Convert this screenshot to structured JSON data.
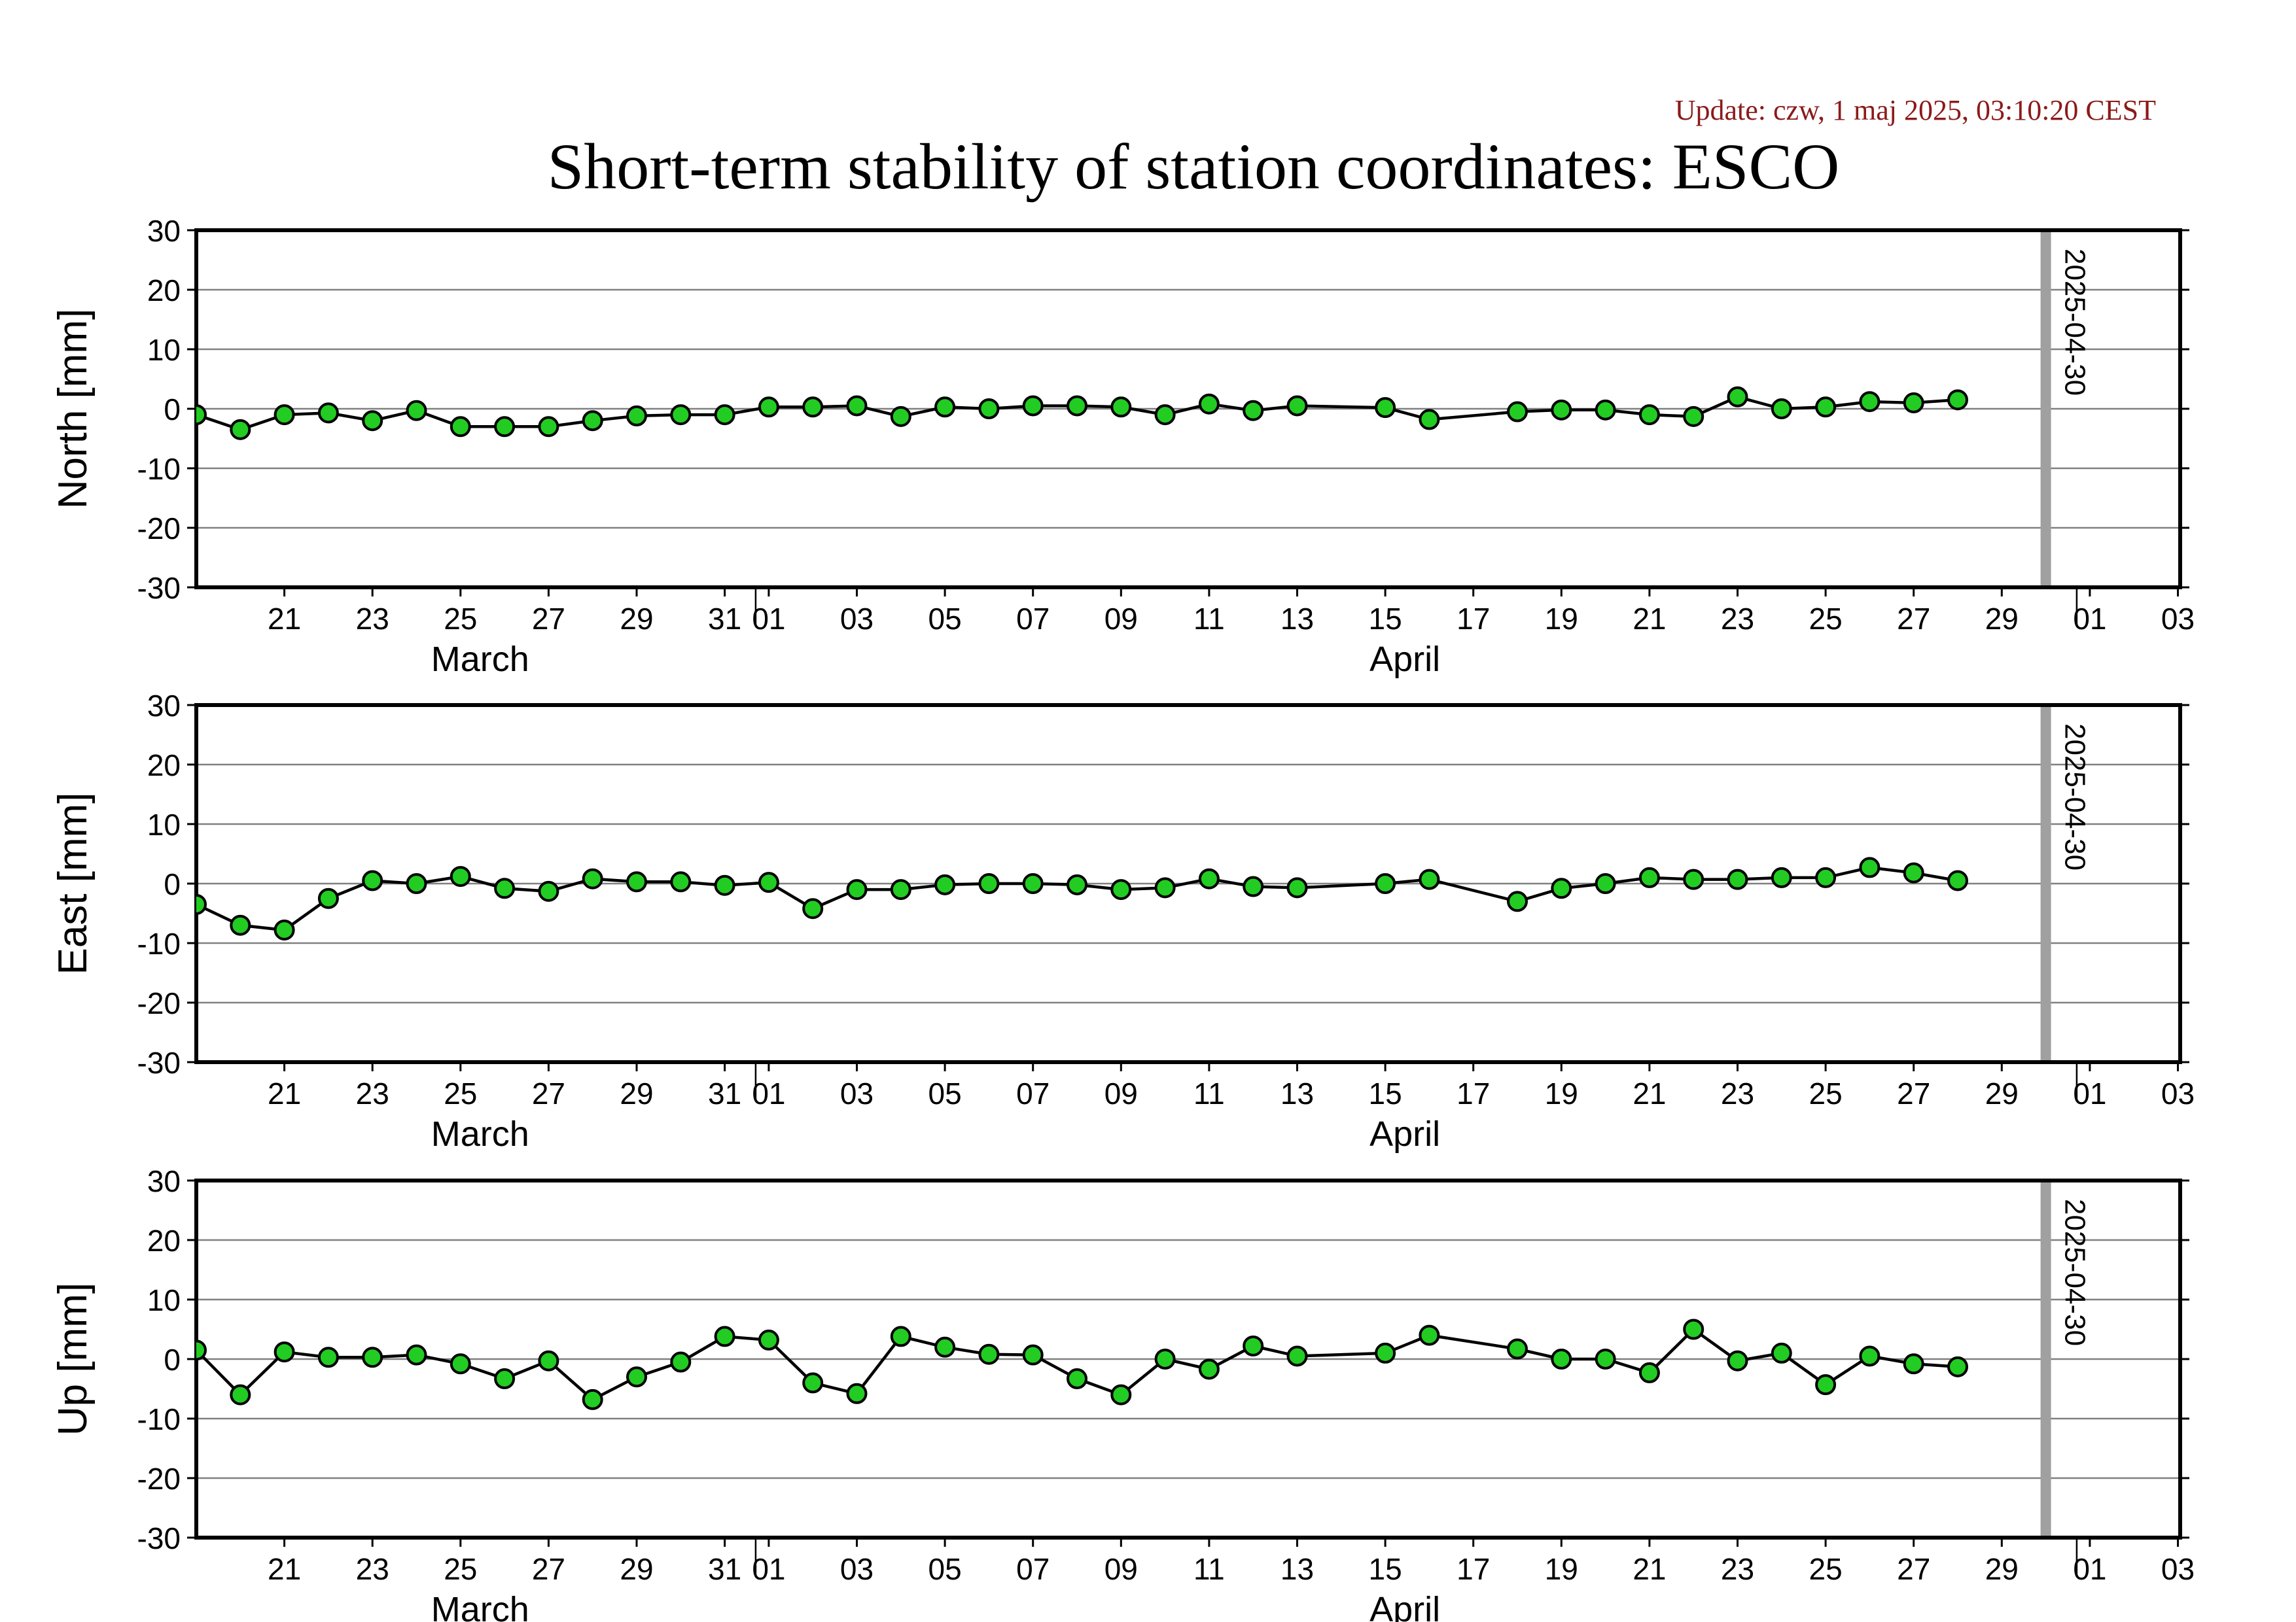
{
  "update_text": "Update: czw, 1 maj 2025, 03:10:20 CEST",
  "title": "Short-term stability of station coordinates: ESCO",
  "colors": {
    "marker_fill": "#22cc22",
    "marker_edge": "#000000",
    "line": "#000000",
    "grid": "#808080",
    "marker_line": "#a0a0a0",
    "update_text": "#8b1a1a"
  },
  "chart_data": [
    {
      "type": "line",
      "ylabel": "North [mm]",
      "ylim": [
        -30,
        30
      ],
      "yticks": [
        -30,
        -20,
        -10,
        0,
        10,
        20,
        30
      ],
      "xlim": [
        "2025-03-19",
        "2025-05-04"
      ],
      "grid": true,
      "x": [
        "2025-03-19",
        "2025-03-20",
        "2025-03-21",
        "2025-03-22",
        "2025-03-23",
        "2025-03-24",
        "2025-03-25",
        "2025-03-26",
        "2025-03-27",
        "2025-03-28",
        "2025-03-29",
        "2025-03-30",
        "2025-03-31",
        "2025-04-01",
        "2025-04-02",
        "2025-04-03",
        "2025-04-04",
        "2025-04-05",
        "2025-04-06",
        "2025-04-07",
        "2025-04-08",
        "2025-04-09",
        "2025-04-10",
        "2025-04-11",
        "2025-04-12",
        "2025-04-13",
        "2025-04-15",
        "2025-04-16",
        "2025-04-18",
        "2025-04-19",
        "2025-04-20",
        "2025-04-21",
        "2025-04-22",
        "2025-04-23",
        "2025-04-24",
        "2025-04-25",
        "2025-04-26",
        "2025-04-27",
        "2025-04-28"
      ],
      "y": [
        -1.0,
        -3.5,
        -1.0,
        -0.7,
        -2.0,
        -0.3,
        -3.0,
        -3.0,
        -3.0,
        -2.0,
        -1.2,
        -1.0,
        -1.0,
        0.3,
        0.3,
        0.5,
        -1.3,
        0.3,
        0.0,
        0.5,
        0.5,
        0.3,
        -1.0,
        0.8,
        -0.3,
        0.5,
        0.2,
        -1.8,
        -0.5,
        -0.2,
        -0.2,
        -1.0,
        -1.3,
        2.0,
        0.0,
        0.3,
        1.2,
        1.0,
        1.5
      ],
      "marker": {
        "date": "2025-04-30",
        "label": "2025-04-30"
      },
      "tick_labels": [
        "21",
        "23",
        "25",
        "27",
        "29",
        "31",
        "01",
        "03",
        "05",
        "07",
        "09",
        "11",
        "13",
        "15",
        "17",
        "19",
        "21",
        "23",
        "25",
        "27",
        "29",
        "01",
        "03"
      ],
      "month_labels": [
        "March",
        "April"
      ]
    },
    {
      "type": "line",
      "ylabel": "East [mm]",
      "ylim": [
        -30,
        30
      ],
      "yticks": [
        -30,
        -20,
        -10,
        0,
        10,
        20,
        30
      ],
      "xlim": [
        "2025-03-19",
        "2025-05-04"
      ],
      "grid": true,
      "x": [
        "2025-03-19",
        "2025-03-20",
        "2025-03-21",
        "2025-03-22",
        "2025-03-23",
        "2025-03-24",
        "2025-03-25",
        "2025-03-26",
        "2025-03-27",
        "2025-03-28",
        "2025-03-29",
        "2025-03-30",
        "2025-03-31",
        "2025-04-01",
        "2025-04-02",
        "2025-04-03",
        "2025-04-04",
        "2025-04-05",
        "2025-04-06",
        "2025-04-07",
        "2025-04-08",
        "2025-04-09",
        "2025-04-10",
        "2025-04-11",
        "2025-04-12",
        "2025-04-13",
        "2025-04-15",
        "2025-04-16",
        "2025-04-18",
        "2025-04-19",
        "2025-04-20",
        "2025-04-21",
        "2025-04-22",
        "2025-04-23",
        "2025-04-24",
        "2025-04-25",
        "2025-04-26",
        "2025-04-27",
        "2025-04-28"
      ],
      "y": [
        -3.5,
        -7.0,
        -7.8,
        -2.5,
        0.5,
        0.0,
        1.2,
        -0.8,
        -1.3,
        0.8,
        0.3,
        0.3,
        -0.3,
        0.2,
        -4.2,
        -1.0,
        -1.0,
        -0.2,
        0.0,
        0.0,
        -0.2,
        -1.0,
        -0.7,
        0.8,
        -0.5,
        -0.7,
        0.0,
        0.7,
        -3.0,
        -0.8,
        0.0,
        1.0,
        0.7,
        0.7,
        1.0,
        1.0,
        2.7,
        1.8,
        0.5
      ],
      "marker": {
        "date": "2025-04-30",
        "label": "2025-04-30"
      },
      "tick_labels": [
        "21",
        "23",
        "25",
        "27",
        "29",
        "31",
        "01",
        "03",
        "05",
        "07",
        "09",
        "11",
        "13",
        "15",
        "17",
        "19",
        "21",
        "23",
        "25",
        "27",
        "29",
        "01",
        "03"
      ],
      "month_labels": [
        "March",
        "April"
      ]
    },
    {
      "type": "line",
      "ylabel": "Up [mm]",
      "ylim": [
        -30,
        30
      ],
      "yticks": [
        -30,
        -20,
        -10,
        0,
        10,
        20,
        30
      ],
      "xlim": [
        "2025-03-19",
        "2025-05-04"
      ],
      "grid": true,
      "x": [
        "2025-03-19",
        "2025-03-20",
        "2025-03-21",
        "2025-03-22",
        "2025-03-23",
        "2025-03-24",
        "2025-03-25",
        "2025-03-26",
        "2025-03-27",
        "2025-03-28",
        "2025-03-29",
        "2025-03-30",
        "2025-03-31",
        "2025-04-01",
        "2025-04-02",
        "2025-04-03",
        "2025-04-04",
        "2025-04-05",
        "2025-04-06",
        "2025-04-07",
        "2025-04-08",
        "2025-04-09",
        "2025-04-10",
        "2025-04-11",
        "2025-04-12",
        "2025-04-13",
        "2025-04-15",
        "2025-04-16",
        "2025-04-18",
        "2025-04-19",
        "2025-04-20",
        "2025-04-21",
        "2025-04-22",
        "2025-04-23",
        "2025-04-24",
        "2025-04-25",
        "2025-04-26",
        "2025-04-27",
        "2025-04-28"
      ],
      "y": [
        1.5,
        -6.0,
        1.2,
        0.3,
        0.3,
        0.7,
        -0.8,
        -3.3,
        -0.3,
        -6.8,
        -3.0,
        -0.5,
        3.8,
        3.2,
        -4.0,
        -5.8,
        3.8,
        2.0,
        0.8,
        0.7,
        -3.3,
        -6.0,
        0.0,
        -1.7,
        2.2,
        0.5,
        1.0,
        4.0,
        1.7,
        0.0,
        0.0,
        -2.3,
        5.0,
        -0.3,
        1.0,
        -4.3,
        0.5,
        -0.8,
        -1.3
      ],
      "marker": {
        "date": "2025-04-30",
        "label": "2025-04-30"
      },
      "tick_labels": [
        "21",
        "23",
        "25",
        "27",
        "29",
        "31",
        "01",
        "03",
        "05",
        "07",
        "09",
        "11",
        "13",
        "15",
        "17",
        "19",
        "21",
        "23",
        "25",
        "27",
        "29",
        "01",
        "03"
      ],
      "month_labels": [
        "March",
        "April"
      ]
    }
  ]
}
